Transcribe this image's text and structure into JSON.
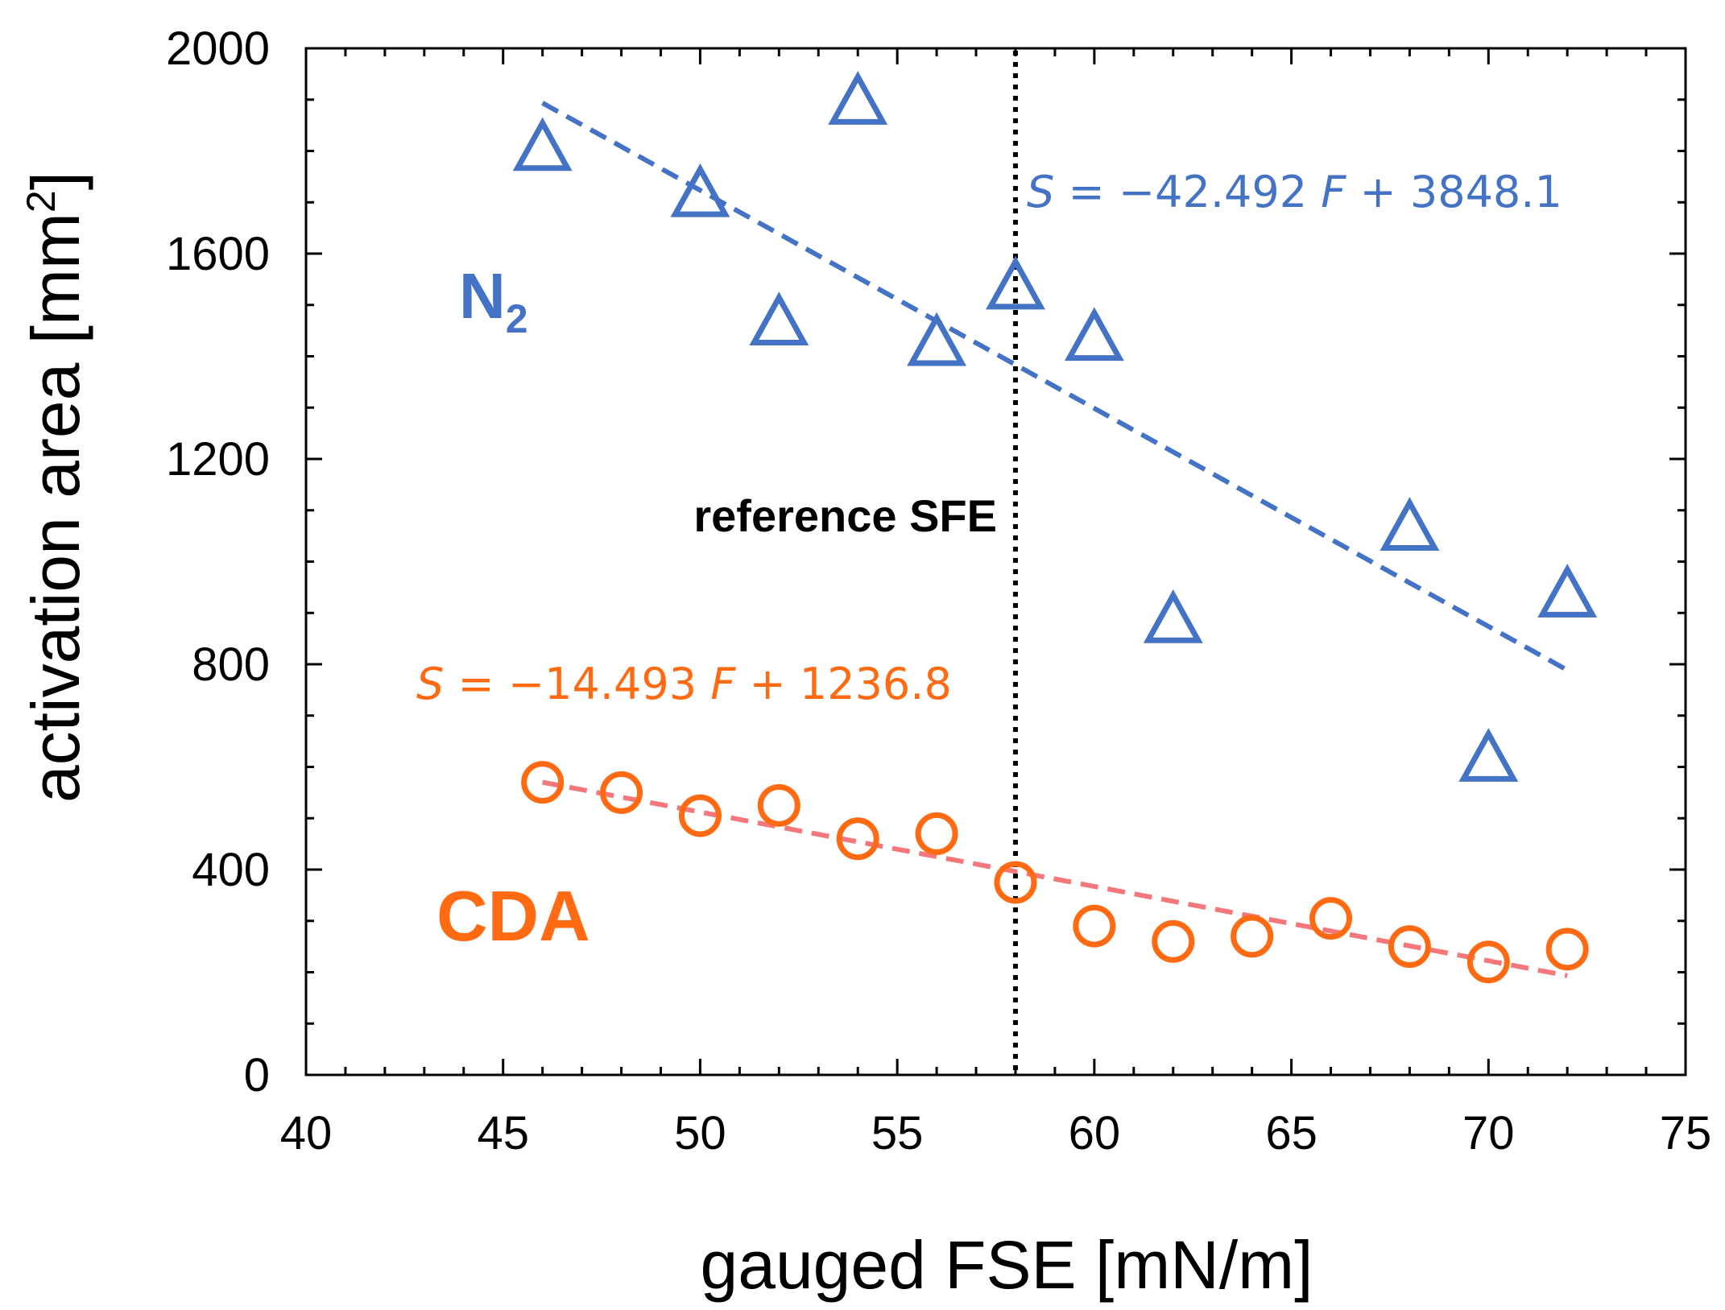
{
  "chart_data": {
    "type": "scatter",
    "xlabel": "gauged FSE [mN/m]",
    "ylabel": "activation area [mm",
    "ylabel_sup": "2",
    "ylabel_close": "]",
    "xlim": [
      40,
      75
    ],
    "ylim": [
      0,
      2000
    ],
    "x_ticks": [
      40,
      45,
      50,
      55,
      60,
      65,
      70,
      75
    ],
    "y_ticks": [
      0,
      400,
      800,
      1200,
      1600,
      2000
    ],
    "grid": false,
    "colors": {
      "n2": "#4472C4",
      "cda": "#FF6A13",
      "cda_fit": "#F4777B",
      "reference": "#000000"
    },
    "series": [
      {
        "name": "N",
        "name_sub": "2",
        "marker": "triangle",
        "points": [
          {
            "x": 46,
            "y": 1800
          },
          {
            "x": 50,
            "y": 1710
          },
          {
            "x": 52,
            "y": 1460
          },
          {
            "x": 54,
            "y": 1890
          },
          {
            "x": 56,
            "y": 1420
          },
          {
            "x": 58,
            "y": 1530
          },
          {
            "x": 60,
            "y": 1430
          },
          {
            "x": 62,
            "y": 880
          },
          {
            "x": 68,
            "y": 1060
          },
          {
            "x": 70,
            "y": 610
          },
          {
            "x": 72,
            "y": 930
          }
        ],
        "fit": {
          "slope": -42.492,
          "intercept": 3848.1,
          "x_range": [
            46,
            72
          ]
        },
        "equation": {
          "s": "S",
          "body": " = −42.492 ",
          "f": "F",
          "tail": " + 3848.1"
        }
      },
      {
        "name": "CDA",
        "marker": "circle",
        "points": [
          {
            "x": 46,
            "y": 570
          },
          {
            "x": 48,
            "y": 550
          },
          {
            "x": 50,
            "y": 505
          },
          {
            "x": 52,
            "y": 525
          },
          {
            "x": 54,
            "y": 460
          },
          {
            "x": 56,
            "y": 470
          },
          {
            "x": 58,
            "y": 375
          },
          {
            "x": 60,
            "y": 290
          },
          {
            "x": 62,
            "y": 260
          },
          {
            "x": 64,
            "y": 270
          },
          {
            "x": 66,
            "y": 305
          },
          {
            "x": 68,
            "y": 250
          },
          {
            "x": 70,
            "y": 220
          },
          {
            "x": 72,
            "y": 245
          }
        ],
        "fit": {
          "slope": -14.493,
          "intercept": 1236.8,
          "x_range": [
            46,
            72
          ]
        },
        "equation": {
          "s": "S",
          "body": " = −14.493 ",
          "f": "F",
          "tail": " + 1236.8"
        }
      }
    ],
    "reference_line": {
      "x": 58,
      "label": "reference SFE"
    }
  }
}
